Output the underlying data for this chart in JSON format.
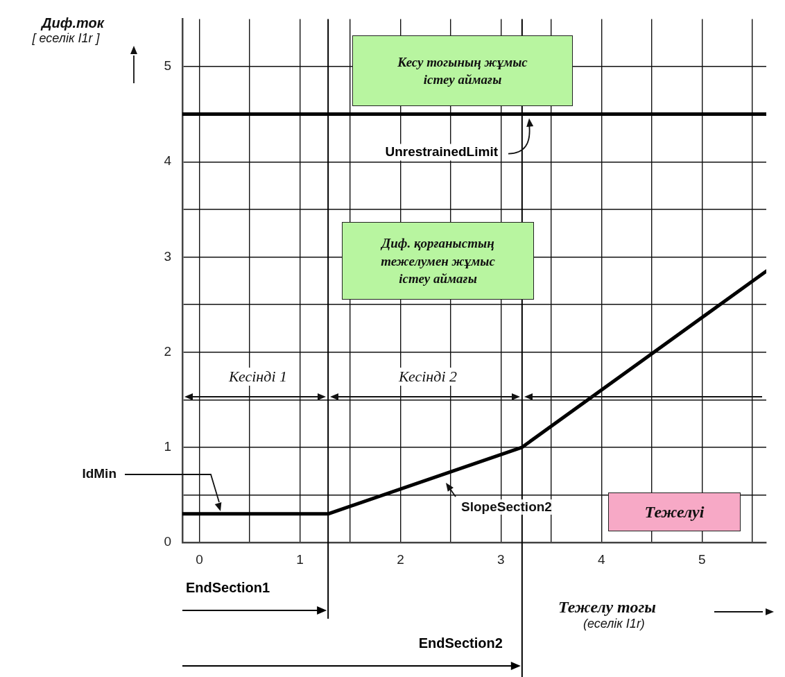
{
  "chart_data": {
    "type": "line",
    "xlabel": "Тежелу тогы\n(еселік I1r)",
    "ylabel": "Диф.ток\n[ еселік I1r ]",
    "x": [
      -0.17,
      1.28,
      3.21,
      5.64
    ],
    "series": [
      {
        "color": "#000000",
        "values": [
          0.3,
          0.3,
          1.0,
          2.85
        ]
      }
    ],
    "xlim": [
      -0.17,
      5.64
    ],
    "xticks": [
      0,
      {
        "value": 0.5,
        "label": null
      },
      1,
      {
        "value": 1.5,
        "label": null
      },
      2,
      {
        "value": 2.5,
        "label": null
      },
      3,
      {
        "value": 3.5,
        "label": null
      },
      4,
      {
        "value": 4.5,
        "label": null
      },
      5,
      {
        "value": 5.5,
        "label": null
      }
    ],
    "ylim": [
      0,
      5.5
    ],
    "yticks": [
      0,
      {
        "value": 0.5,
        "label": null
      },
      1,
      {
        "value": 1.5,
        "label": null
      },
      2,
      {
        "value": 2.5,
        "label": null
      },
      3,
      {
        "value": 3.5,
        "label": null
      },
      4,
      {
        "value": 4.5,
        "label": null
      },
      5
    ],
    "grid": true,
    "marker": "none",
    "line_style": "solid",
    "legend": false,
    "ref_lines": [
      {
        "axis": "y",
        "value": 4.5,
        "label": "UnrestrainedLimit",
        "color": "#000000"
      },
      {
        "axis": "x",
        "value": 1.28,
        "label": "EndSection1",
        "color": "#000000"
      },
      {
        "axis": "x",
        "value": 3.21,
        "label": "EndSection2",
        "color": "#000000"
      }
    ],
    "annotations": [
      "Кесу тогының жұмыс\nістеу аймағы",
      "Диф. қорғаныстың\nтежелумен жұмыс\nістеу аймағы",
      "Тежелуі",
      "Кесінді 1",
      "Кесінді 2",
      "IdMin",
      "SlopeSection2"
    ]
  }
}
